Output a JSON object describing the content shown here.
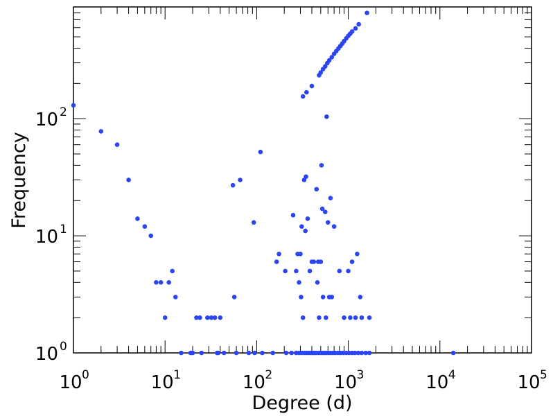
{
  "chart_data": {
    "type": "scatter",
    "title": "",
    "xlabel": "Degree (d)",
    "ylabel": "Frequency",
    "x_scale": "log",
    "y_scale": "log",
    "xlim": [
      1,
      100000
    ],
    "ylim": [
      1,
      900
    ],
    "grid": false,
    "marker_color": "#2b45f0",
    "x_ticks": [
      {
        "base": "10",
        "exp": "0"
      },
      {
        "base": "10",
        "exp": "1"
      },
      {
        "base": "10",
        "exp": "2"
      },
      {
        "base": "10",
        "exp": "3"
      },
      {
        "base": "10",
        "exp": "4"
      },
      {
        "base": "10",
        "exp": "5"
      }
    ],
    "y_ticks": [
      {
        "base": "10",
        "exp": "0"
      },
      {
        "base": "10",
        "exp": "1"
      },
      {
        "base": "10",
        "exp": "2"
      }
    ],
    "points": [
      [
        1,
        130
      ],
      [
        2,
        78
      ],
      [
        3,
        60
      ],
      [
        4,
        30
      ],
      [
        5,
        14
      ],
      [
        6,
        12
      ],
      [
        7,
        10
      ],
      [
        8,
        4
      ],
      [
        9,
        4
      ],
      [
        10,
        2
      ],
      [
        11,
        4
      ],
      [
        12,
        5
      ],
      [
        13,
        3
      ],
      [
        15,
        1
      ],
      [
        19,
        1
      ],
      [
        20,
        1
      ],
      [
        22,
        2
      ],
      [
        24,
        2
      ],
      [
        25,
        1
      ],
      [
        29,
        2
      ],
      [
        32,
        2
      ],
      [
        35,
        2
      ],
      [
        37,
        1
      ],
      [
        38,
        1
      ],
      [
        40,
        2
      ],
      [
        44,
        1
      ],
      [
        55,
        27
      ],
      [
        57,
        3
      ],
      [
        60,
        1
      ],
      [
        66,
        30
      ],
      [
        82,
        1
      ],
      [
        93,
        13
      ],
      [
        95,
        1
      ],
      [
        110,
        52
      ],
      [
        115,
        1
      ],
      [
        150,
        1
      ],
      [
        165,
        6
      ],
      [
        175,
        7
      ],
      [
        205,
        5
      ],
      [
        210,
        1
      ],
      [
        240,
        1
      ],
      [
        250,
        15
      ],
      [
        270,
        5
      ],
      [
        280,
        7
      ],
      [
        290,
        4
      ],
      [
        300,
        7
      ],
      [
        305,
        3
      ],
      [
        310,
        12
      ],
      [
        320,
        2
      ],
      [
        330,
        30
      ],
      [
        340,
        11
      ],
      [
        345,
        32
      ],
      [
        360,
        14
      ],
      [
        380,
        5
      ],
      [
        400,
        6
      ],
      [
        420,
        6
      ],
      [
        450,
        25
      ],
      [
        460,
        4
      ],
      [
        470,
        6
      ],
      [
        480,
        2
      ],
      [
        500,
        6
      ],
      [
        510,
        40
      ],
      [
        520,
        17
      ],
      [
        530,
        3
      ],
      [
        560,
        16
      ],
      [
        570,
        2
      ],
      [
        580,
        104
      ],
      [
        600,
        13
      ],
      [
        620,
        3
      ],
      [
        640,
        21
      ],
      [
        660,
        3
      ],
      [
        700,
        12
      ],
      [
        800,
        5
      ],
      [
        900,
        2
      ],
      [
        1000,
        5
      ],
      [
        1050,
        2
      ],
      [
        1100,
        6
      ],
      [
        1200,
        2
      ],
      [
        1250,
        7
      ],
      [
        1350,
        3
      ],
      [
        1400,
        2
      ],
      [
        1700,
        2
      ],
      [
        270,
        1
      ],
      [
        290,
        1
      ],
      [
        310,
        1
      ],
      [
        330,
        1
      ],
      [
        350,
        1
      ],
      [
        370,
        1
      ],
      [
        390,
        1
      ],
      [
        410,
        1
      ],
      [
        430,
        1
      ],
      [
        450,
        1
      ],
      [
        480,
        1
      ],
      [
        510,
        1
      ],
      [
        540,
        1
      ],
      [
        570,
        1
      ],
      [
        600,
        1
      ],
      [
        640,
        1
      ],
      [
        680,
        1
      ],
      [
        720,
        1
      ],
      [
        770,
        1
      ],
      [
        820,
        1
      ],
      [
        880,
        1
      ],
      [
        950,
        1
      ],
      [
        1020,
        1
      ],
      [
        1100,
        1
      ],
      [
        1180,
        1
      ],
      [
        1280,
        1
      ],
      [
        1400,
        1
      ],
      [
        1550,
        1
      ],
      [
        1700,
        1
      ],
      [
        14000,
        1
      ],
      [
        320,
        155
      ],
      [
        350,
        168
      ],
      [
        400,
        190
      ],
      [
        480,
        235
      ],
      [
        500,
        248
      ],
      [
        530,
        265
      ],
      [
        560,
        280
      ],
      [
        590,
        298
      ],
      [
        620,
        315
      ],
      [
        660,
        335
      ],
      [
        700,
        358
      ],
      [
        740,
        378
      ],
      [
        780,
        398
      ],
      [
        820,
        418
      ],
      [
        860,
        438
      ],
      [
        900,
        460
      ],
      [
        950,
        485
      ],
      [
        1000,
        510
      ],
      [
        1050,
        532
      ],
      [
        1100,
        555
      ],
      [
        1200,
        590
      ],
      [
        1300,
        640
      ],
      [
        1600,
        800
      ]
    ]
  }
}
